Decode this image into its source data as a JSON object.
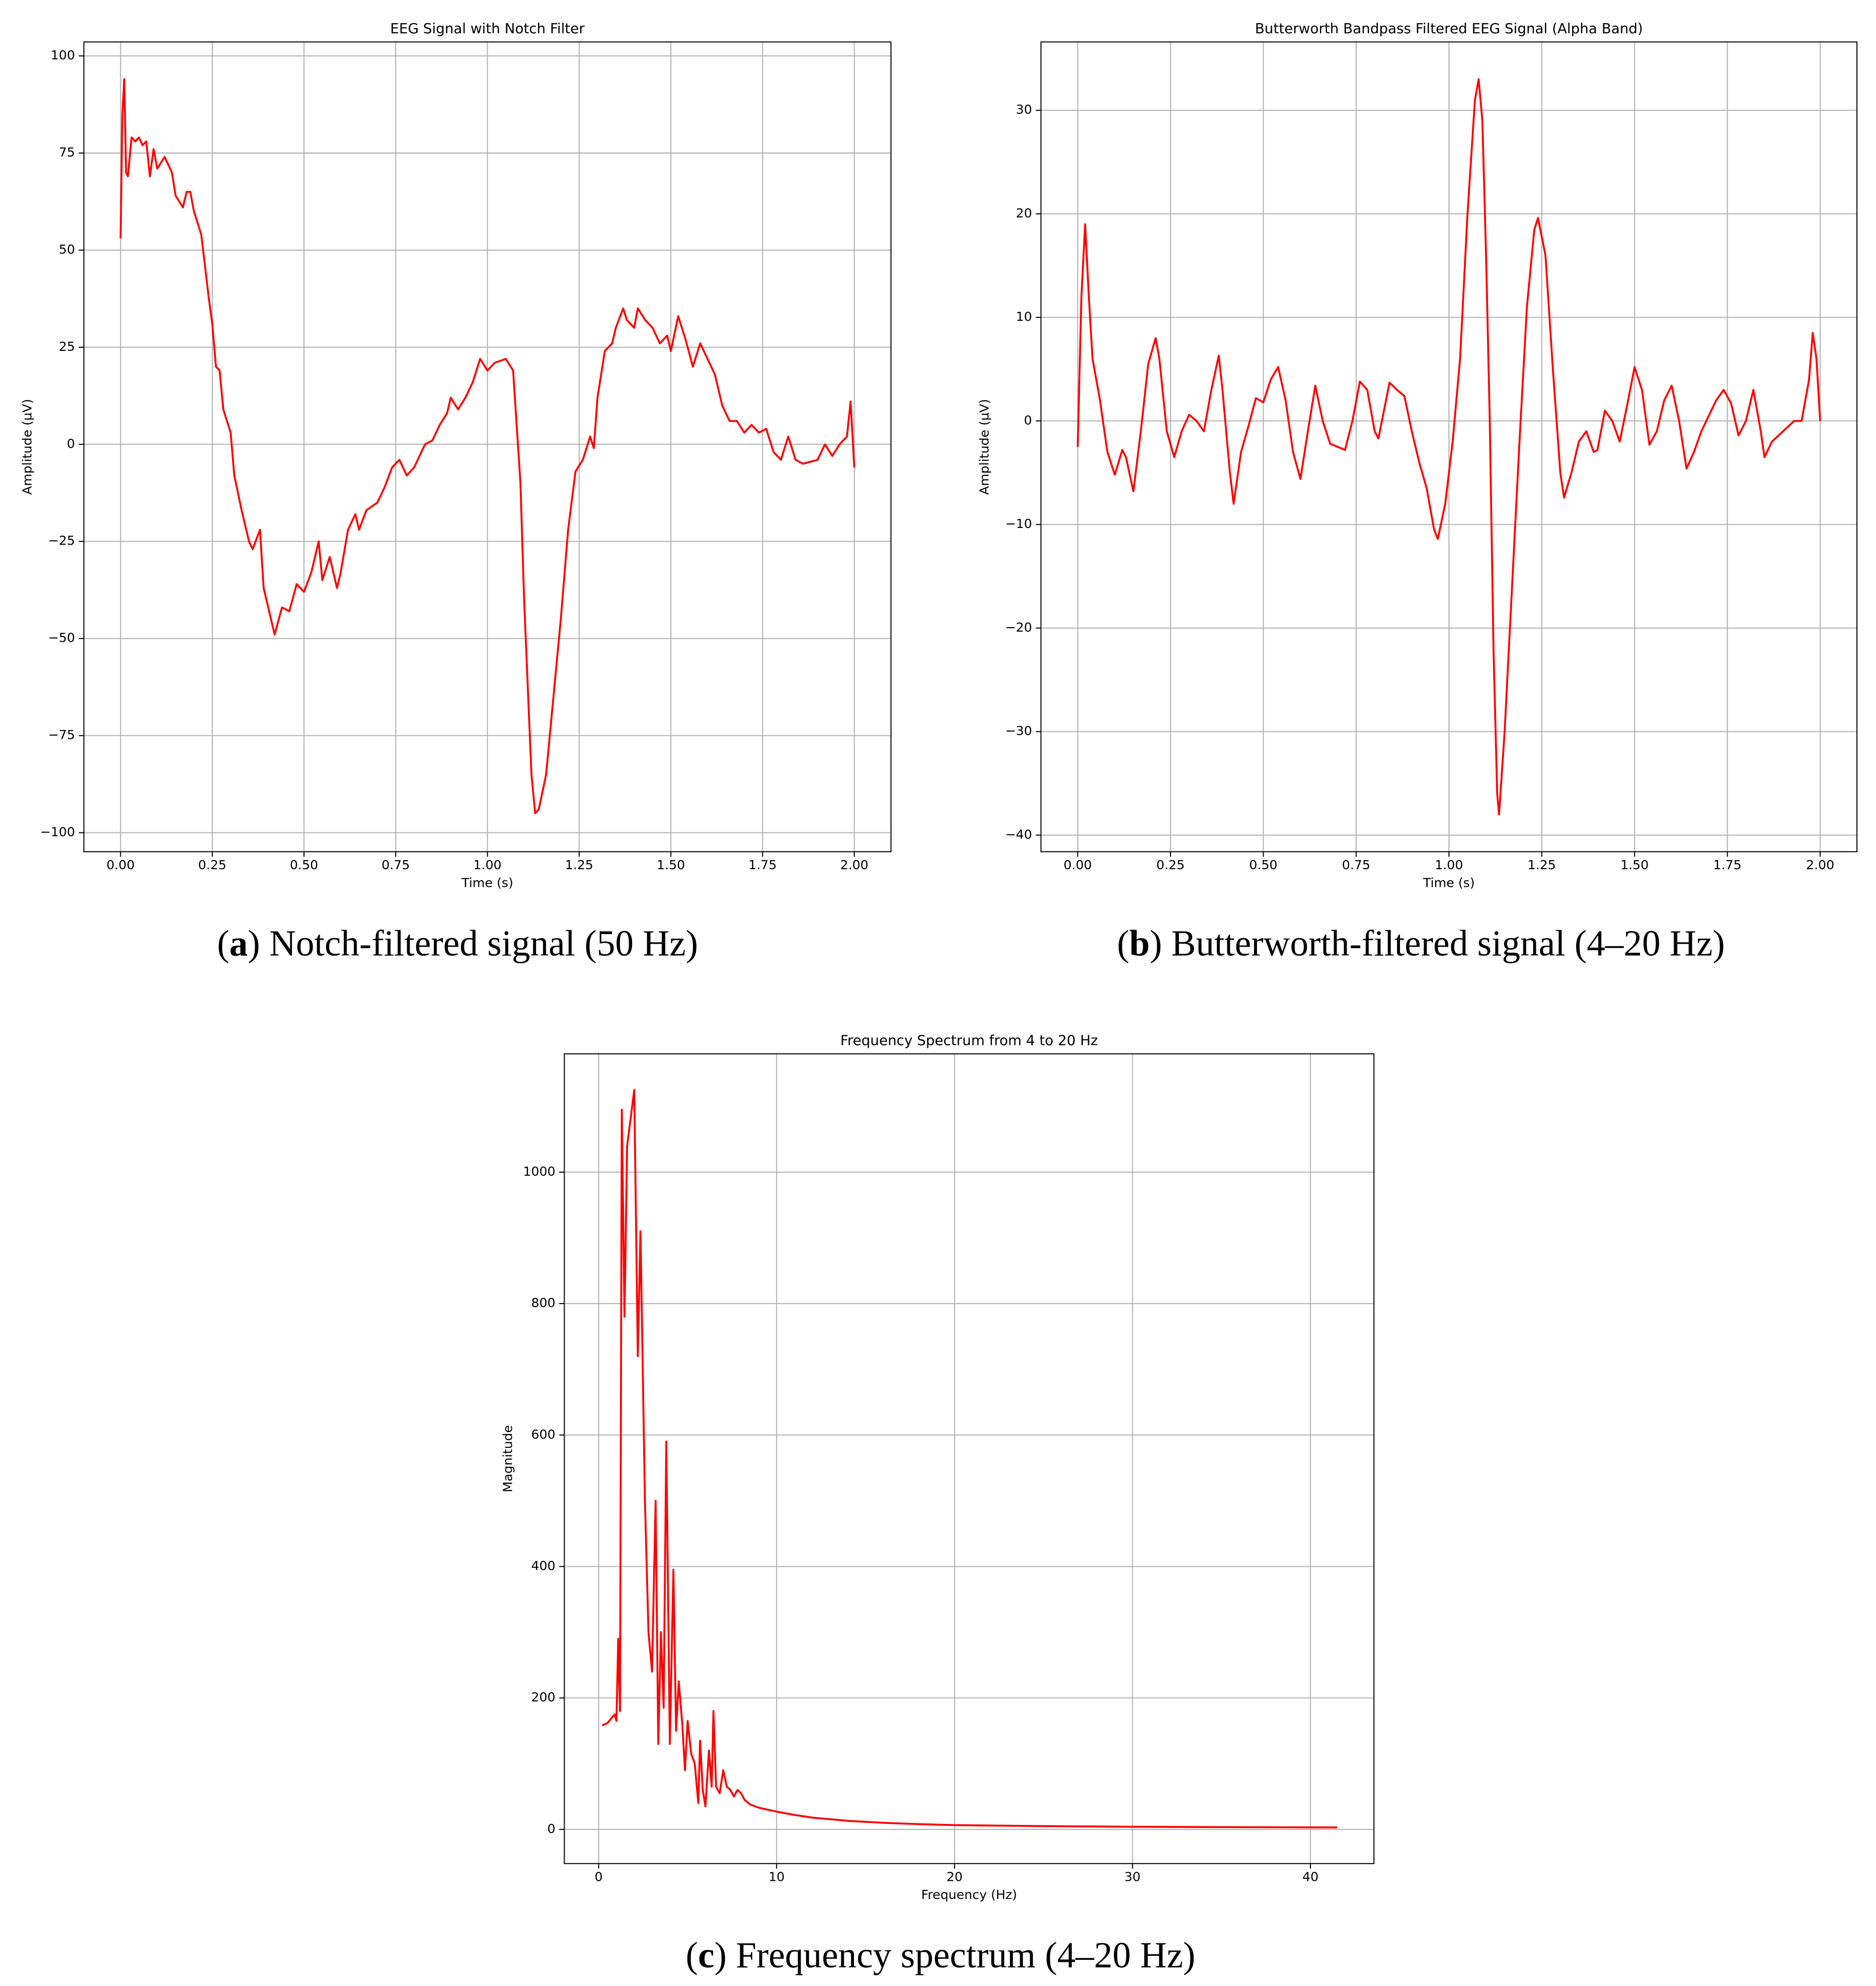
{
  "chart_data": [
    {
      "type": "line",
      "title": "EEG Signal with Notch Filter",
      "xlabel": "Time (s)",
      "ylabel": "Amplitude (µV)",
      "caption": "(a) Notch-filtered signal (50 Hz)",
      "color": "#ff0000",
      "grid": true,
      "xlim": [
        -0.1,
        2.1
      ],
      "ylim": [
        -104.9,
        103.6
      ],
      "xticks": [
        {
          "value": 0,
          "label": "0.00"
        },
        {
          "value": 0.25,
          "label": "0.25"
        },
        {
          "value": 0.5,
          "label": "0.50"
        },
        {
          "value": 0.75,
          "label": "0.75"
        },
        {
          "value": 1,
          "label": "1.00"
        },
        {
          "value": 1.25,
          "label": "1.25"
        },
        {
          "value": 1.5,
          "label": "1.50"
        },
        {
          "value": 1.75,
          "label": "1.75"
        },
        {
          "value": 2,
          "label": "2.00"
        }
      ],
      "yticks": [
        {
          "value": -100,
          "label": "−100"
        },
        {
          "value": -75,
          "label": "−75"
        },
        {
          "value": -50,
          "label": "−50"
        },
        {
          "value": -25,
          "label": "−25"
        },
        0,
        25,
        50,
        75,
        100
      ],
      "x": [
        0,
        0.005,
        0.01,
        0.015,
        0.02,
        0.03,
        0.04,
        0.05,
        0.06,
        0.07,
        0.08,
        0.09,
        0.1,
        0.12,
        0.14,
        0.15,
        0.17,
        0.18,
        0.19,
        0.2,
        0.22,
        0.24,
        0.25,
        0.26,
        0.27,
        0.28,
        0.3,
        0.31,
        0.33,
        0.35,
        0.36,
        0.38,
        0.39,
        0.41,
        0.42,
        0.44,
        0.46,
        0.48,
        0.5,
        0.52,
        0.54,
        0.55,
        0.57,
        0.59,
        0.6,
        0.62,
        0.64,
        0.65,
        0.67,
        0.7,
        0.72,
        0.74,
        0.76,
        0.78,
        0.8,
        0.83,
        0.85,
        0.87,
        0.89,
        0.9,
        0.92,
        0.94,
        0.96,
        0.98,
        1.0,
        1.02,
        1.05,
        1.07,
        1.09,
        1.1,
        1.12,
        1.13,
        1.14,
        1.16,
        1.18,
        1.2,
        1.22,
        1.24,
        1.26,
        1.28,
        1.29,
        1.3,
        1.32,
        1.34,
        1.35,
        1.37,
        1.38,
        1.4,
        1.41,
        1.43,
        1.45,
        1.47,
        1.49,
        1.5,
        1.52,
        1.54,
        1.56,
        1.58,
        1.6,
        1.62,
        1.64,
        1.66,
        1.68,
        1.7,
        1.72,
        1.74,
        1.76,
        1.78,
        1.8,
        1.82,
        1.84,
        1.86,
        1.9,
        1.92,
        1.94,
        1.96,
        1.98,
        1.99,
        2.0
      ],
      "values": [
        53,
        85,
        94,
        70,
        69,
        79,
        78,
        79,
        77,
        78,
        69,
        76,
        71,
        74,
        70,
        64,
        61,
        65,
        65,
        60,
        54,
        38,
        31,
        20,
        19,
        9,
        3,
        -8,
        -17,
        -25,
        -27,
        -22,
        -37,
        -45,
        -49,
        -42,
        -43,
        -36,
        -38,
        -33,
        -25,
        -35,
        -29,
        -37,
        -33,
        -22,
        -18,
        -22,
        -17,
        -15,
        -11,
        -6,
        -4,
        -8,
        -6,
        0,
        1,
        5,
        8,
        12,
        9,
        12,
        16,
        22,
        19,
        21,
        22,
        19,
        -10,
        -40,
        -85,
        -95,
        -94,
        -85,
        -65,
        -45,
        -22,
        -7,
        -4,
        2,
        -1,
        12,
        24,
        26,
        30,
        35,
        32,
        30,
        35,
        32,
        30,
        26,
        28,
        24,
        33,
        27,
        20,
        26,
        22,
        18,
        10,
        6,
        6,
        3,
        5,
        3,
        4,
        -2,
        -4,
        2,
        -4,
        -5,
        -4,
        0,
        -3,
        0,
        2,
        11,
        -6
      ]
    },
    {
      "type": "line",
      "title": "Butterworth Bandpass Filtered EEG Signal (Alpha Band)",
      "xlabel": "Time (s)",
      "ylabel": "Amplitude (µV)",
      "caption": "(b) Butterworth-filtered signal (4–20 Hz)",
      "color": "#ff0000",
      "grid": true,
      "xlim": [
        -0.099,
        2.099
      ],
      "ylim": [
        -41.6,
        36.6
      ],
      "xticks": [
        {
          "value": 0,
          "label": "0.00"
        },
        {
          "value": 0.25,
          "label": "0.25"
        },
        {
          "value": 0.5,
          "label": "0.50"
        },
        {
          "value": 0.75,
          "label": "0.75"
        },
        {
          "value": 1,
          "label": "1.00"
        },
        {
          "value": 1.25,
          "label": "1.25"
        },
        {
          "value": 1.5,
          "label": "1.50"
        },
        {
          "value": 1.75,
          "label": "1.75"
        },
        {
          "value": 2,
          "label": "2.00"
        }
      ],
      "yticks": [
        {
          "value": -40,
          "label": "−40"
        },
        {
          "value": -30,
          "label": "−30"
        },
        {
          "value": -20,
          "label": "−20"
        },
        {
          "value": -10,
          "label": "−10"
        },
        0,
        10,
        20,
        30
      ],
      "x": [
        0,
        0.01,
        0.02,
        0.03,
        0.04,
        0.06,
        0.08,
        0.1,
        0.12,
        0.13,
        0.15,
        0.17,
        0.19,
        0.21,
        0.22,
        0.24,
        0.26,
        0.28,
        0.3,
        0.32,
        0.34,
        0.36,
        0.38,
        0.39,
        0.41,
        0.42,
        0.44,
        0.46,
        0.48,
        0.5,
        0.52,
        0.54,
        0.56,
        0.58,
        0.6,
        0.62,
        0.64,
        0.66,
        0.68,
        0.72,
        0.74,
        0.76,
        0.78,
        0.8,
        0.81,
        0.84,
        0.86,
        0.88,
        0.9,
        0.92,
        0.94,
        0.96,
        0.97,
        0.99,
        1.01,
        1.03,
        1.05,
        1.07,
        1.08,
        1.09,
        1.1,
        1.11,
        1.12,
        1.13,
        1.135,
        1.15,
        1.17,
        1.19,
        1.21,
        1.23,
        1.24,
        1.26,
        1.28,
        1.3,
        1.31,
        1.33,
        1.35,
        1.37,
        1.39,
        1.4,
        1.42,
        1.44,
        1.46,
        1.48,
        1.5,
        1.52,
        1.54,
        1.56,
        1.58,
        1.6,
        1.62,
        1.64,
        1.66,
        1.68,
        1.72,
        1.74,
        1.76,
        1.78,
        1.8,
        1.82,
        1.84,
        1.85,
        1.87,
        1.9,
        1.93,
        1.95,
        1.97,
        1.98,
        1.99,
        2.0
      ],
      "values": [
        -2.5,
        12,
        19,
        12,
        6,
        2,
        -3,
        -5.2,
        -2.8,
        -3.5,
        -6.8,
        -1,
        5.5,
        8,
        6,
        -1,
        -3.5,
        -1,
        0.6,
        0,
        -1,
        3,
        6.3,
        3,
        -5,
        -8,
        -3,
        -0.5,
        2.2,
        1.8,
        4,
        5.2,
        2,
        -3,
        -5.6,
        -1,
        3.4,
        0,
        -2.2,
        -2.8,
        0,
        3.8,
        3,
        -1,
        -1.7,
        3.7,
        3,
        2.4,
        -1,
        -4,
        -6.5,
        -10.5,
        -11.4,
        -8,
        -2,
        6,
        20,
        31,
        33,
        29,
        16,
        0,
        -22,
        -36,
        -38,
        -30,
        -16,
        -2,
        11,
        18.5,
        19.6,
        16,
        5,
        -5,
        -7.4,
        -5,
        -2,
        -1,
        -3,
        -2.8,
        1,
        0,
        -2,
        1.5,
        5.2,
        3,
        -2.3,
        -1,
        2,
        3.4,
        0,
        -4.6,
        -3,
        -1,
        2,
        3,
        1.7,
        -1.4,
        0,
        3,
        -1,
        -3.5,
        -2,
        -1,
        0,
        0,
        4,
        8.5,
        6,
        0
      ]
    },
    {
      "type": "line",
      "title": "Frequency Spectrum from 4 to 20 Hz",
      "xlabel": "Frequency (Hz)",
      "ylabel": "Magnitude",
      "caption": "(c) Frequency spectrum (4–20 Hz)",
      "color": "#ff0000",
      "grid": true,
      "xlim": [
        -1.93,
        43.57
      ],
      "ylim": [
        -52,
        1180
      ],
      "xticks": [
        0,
        10,
        20,
        30,
        40
      ],
      "yticks": [
        0,
        200,
        400,
        600,
        800,
        1000
      ],
      "x": [
        0.2,
        0.5,
        0.9,
        1.0,
        1.1,
        1.2,
        1.3,
        1.45,
        1.6,
        2.0,
        2.2,
        2.35,
        2.6,
        2.8,
        3.0,
        3.2,
        3.35,
        3.5,
        3.65,
        3.8,
        4.0,
        4.2,
        4.35,
        4.5,
        4.7,
        4.85,
        5.0,
        5.2,
        5.4,
        5.6,
        5.7,
        5.85,
        6.0,
        6.2,
        6.35,
        6.45,
        6.6,
        6.8,
        7.0,
        7.2,
        7.4,
        7.6,
        7.8,
        8.0,
        8.2,
        8.5,
        9,
        10,
        11,
        12,
        14,
        16,
        18,
        20,
        25,
        30,
        35,
        41.5
      ],
      "values": [
        158,
        162,
        175,
        165,
        290,
        180,
        1095,
        780,
        1040,
        1125,
        720,
        910,
        500,
        300,
        240,
        500,
        130,
        300,
        185,
        590,
        130,
        395,
        150,
        225,
        160,
        90,
        165,
        115,
        100,
        40,
        135,
        60,
        35,
        120,
        65,
        180,
        65,
        55,
        90,
        65,
        60,
        50,
        60,
        55,
        45,
        38,
        33,
        27,
        22,
        18,
        13,
        10,
        8,
        6.5,
        5,
        4,
        3.5,
        3
      ]
    }
  ]
}
